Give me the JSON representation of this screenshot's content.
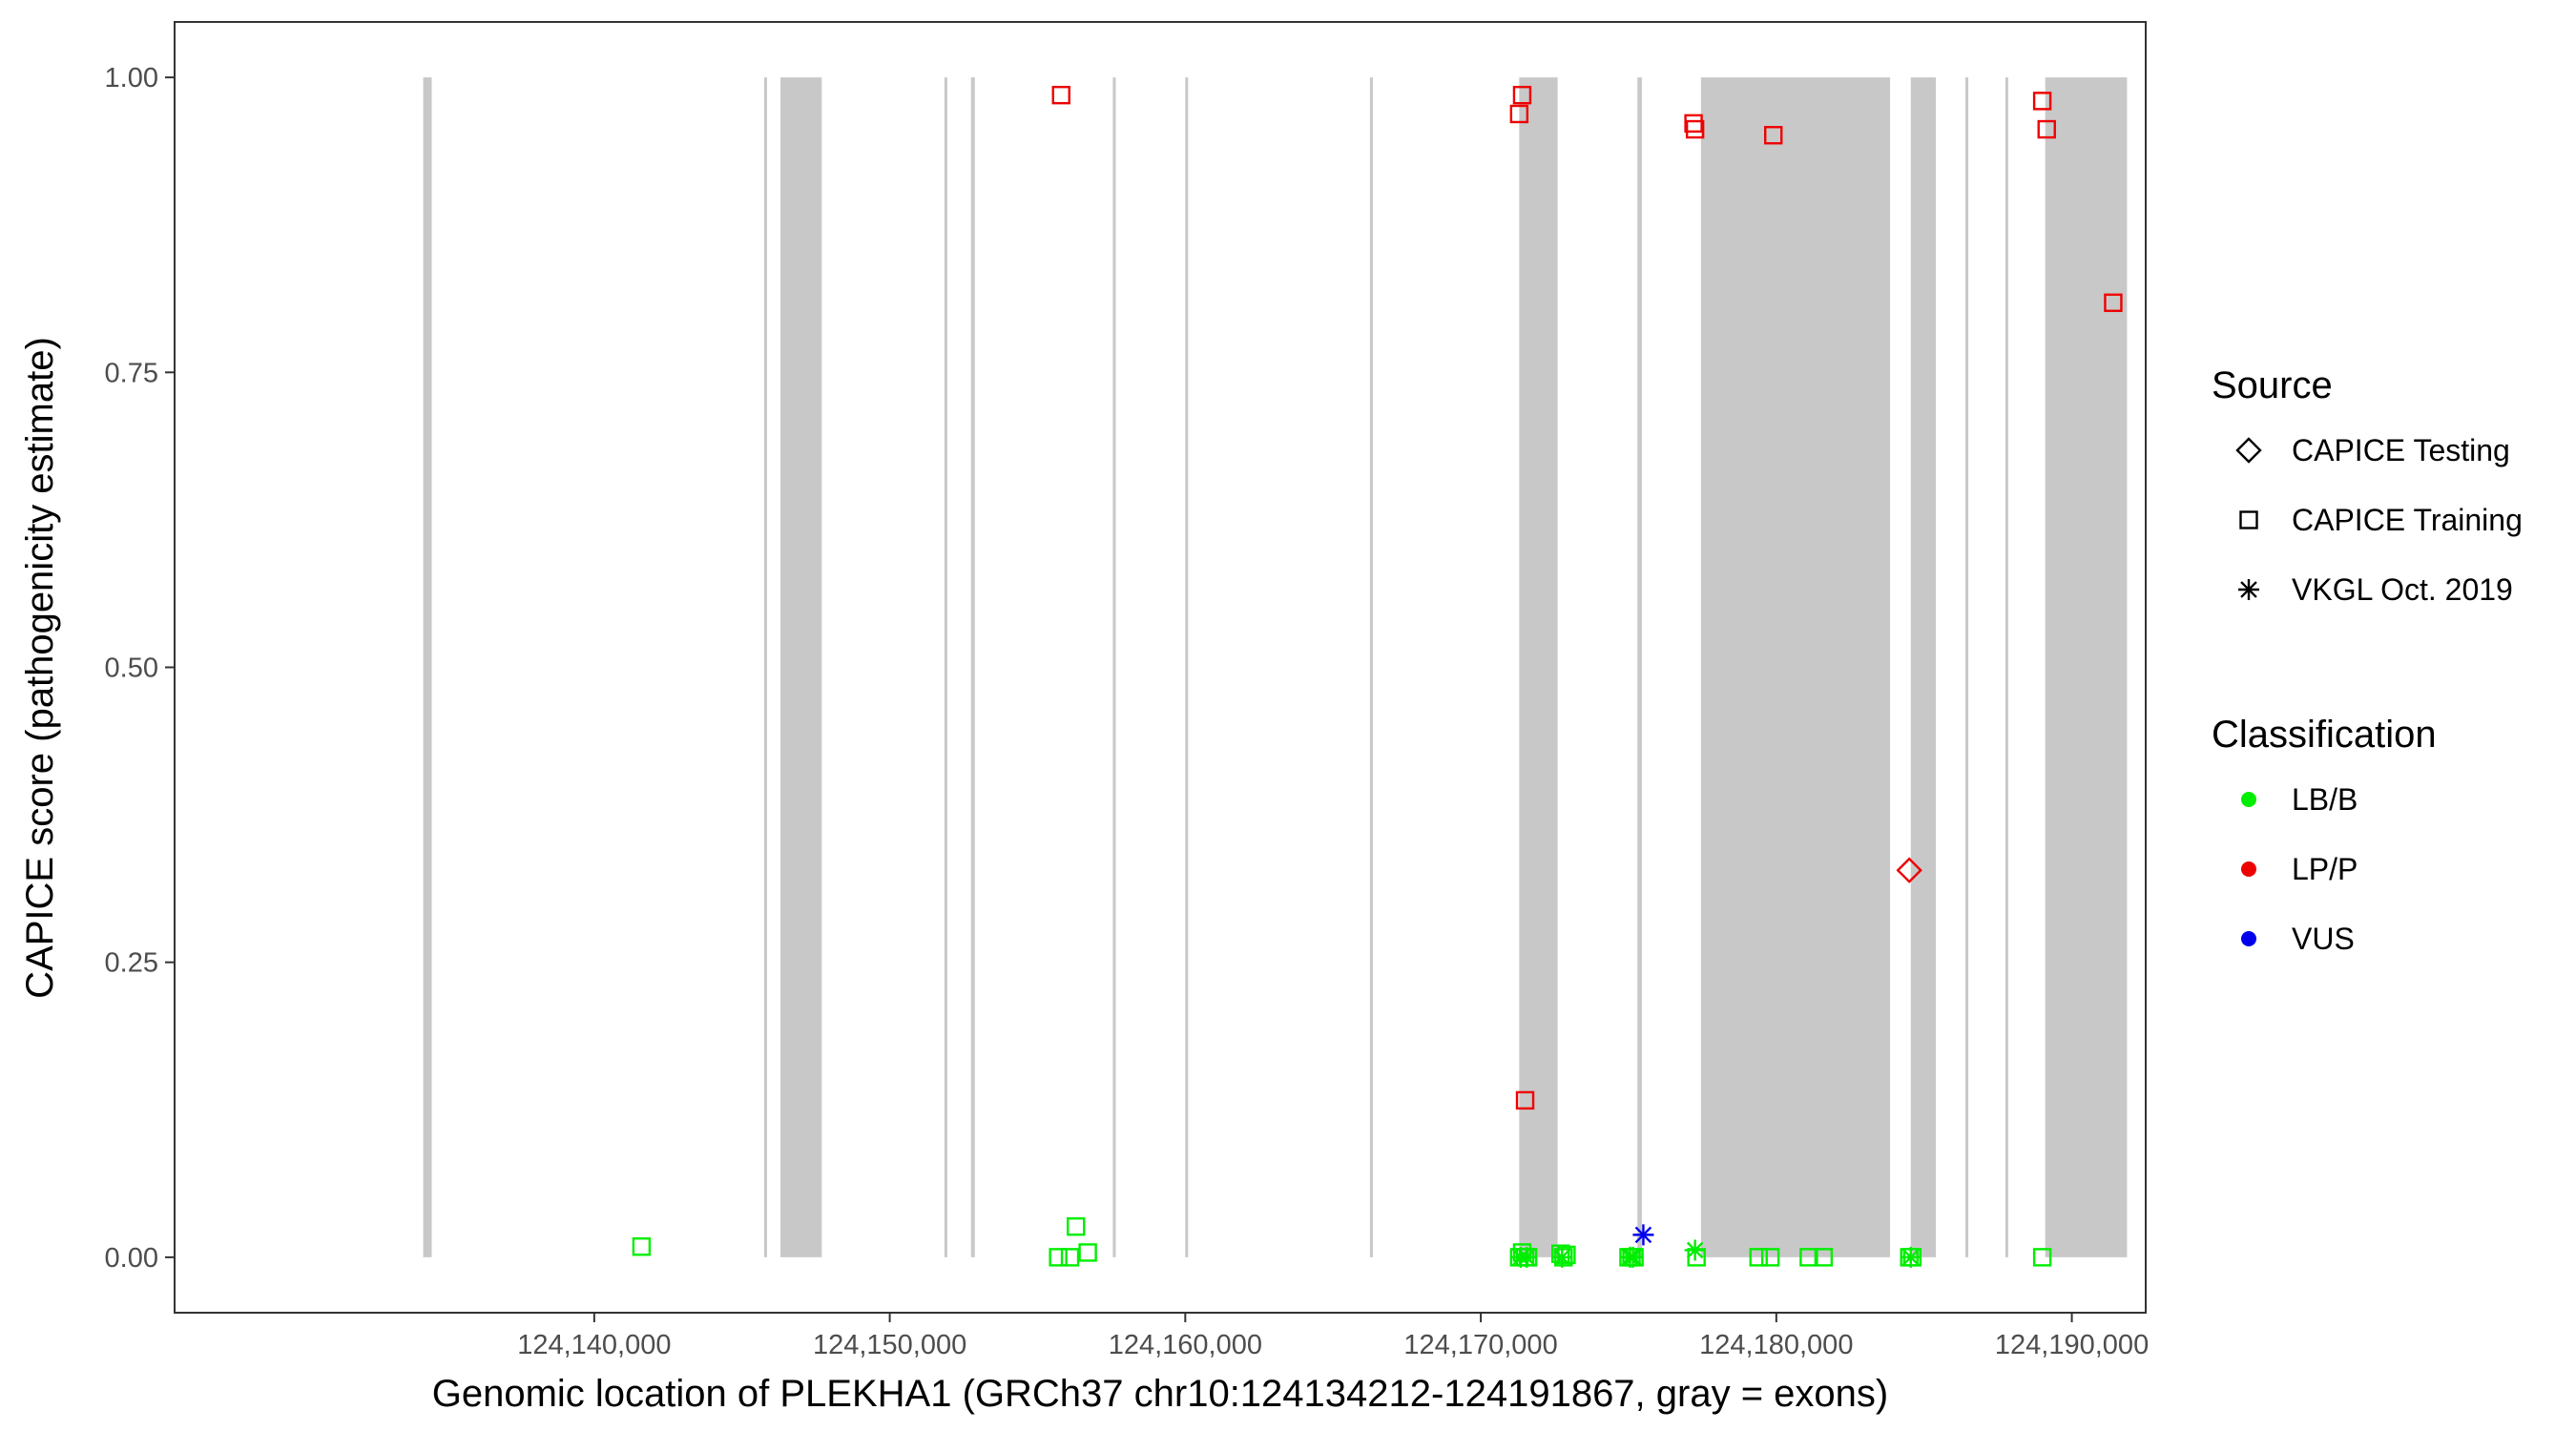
{
  "chart_data": {
    "type": "scatter",
    "title": "",
    "xlabel": "Genomic location of PLEKHA1 (GRCh37 chr10:124134212-124191867, gray = exons)",
    "ylabel": "CAPICE score (pathogenicity estimate)",
    "xlim": [
      124125800,
      124192500
    ],
    "ylim": [
      -0.047,
      1.047
    ],
    "x_ticks": [
      124140000,
      124150000,
      124160000,
      124170000,
      124180000,
      124190000
    ],
    "x_tick_labels": [
      "124,140,000",
      "124,150,000",
      "124,160,000",
      "124,170,000",
      "124,180,000",
      "124,190,000"
    ],
    "y_ticks": [
      0,
      0.25,
      0.5,
      0.75,
      1.0
    ],
    "y_tick_labels": [
      "0.00",
      "0.25",
      "0.50",
      "0.75",
      "1.00"
    ],
    "grid": false,
    "exons": [
      {
        "start": 124134212,
        "end": 124134500
      },
      {
        "start": 124145750,
        "end": 124145830
      },
      {
        "start": 124146300,
        "end": 124147700
      },
      {
        "start": 124151850,
        "end": 124151930
      },
      {
        "start": 124152750,
        "end": 124152880
      },
      {
        "start": 124157550,
        "end": 124157620
      },
      {
        "start": 124160000,
        "end": 124160060
      },
      {
        "start": 124166250,
        "end": 124166310
      },
      {
        "start": 124171300,
        "end": 124172600
      },
      {
        "start": 124175300,
        "end": 124175450
      },
      {
        "start": 124177450,
        "end": 124183850
      },
      {
        "start": 124184550,
        "end": 124185400
      },
      {
        "start": 124186400,
        "end": 124186480
      },
      {
        "start": 124187750,
        "end": 124187830
      },
      {
        "start": 124189100,
        "end": 124191867
      }
    ],
    "exon_color": "#c8c8c8",
    "legend": {
      "position": "right",
      "source_title": "Source",
      "source_items": [
        {
          "label": "CAPICE Testing",
          "shape": "diamond"
        },
        {
          "label": "CAPICE Training",
          "shape": "square"
        },
        {
          "label": "VKGL Oct. 2019",
          "shape": "asterisk"
        }
      ],
      "class_title": "Classification",
      "class_items": [
        {
          "label": "LB/B",
          "color": "#00ee00"
        },
        {
          "label": "LP/P",
          "color": "#ee0000"
        },
        {
          "label": "VUS",
          "color": "#0000ee"
        }
      ]
    },
    "series": [
      {
        "source": "CAPICE Training",
        "classification": "LP/P",
        "x": [
          124155800,
          124171300,
          124171400,
          124171500,
          124177200,
          124177250,
          124179900,
          124189000,
          124189150,
          124191400
        ],
        "y": [
          0.985,
          0.969,
          0.985,
          0.133,
          0.961,
          0.956,
          0.951,
          0.98,
          0.956,
          0.809
        ]
      },
      {
        "source": "CAPICE Testing",
        "classification": "LP/P",
        "x": [
          124184500
        ],
        "y": [
          0.328
        ]
      },
      {
        "source": "CAPICE Training",
        "classification": "LB/B",
        "x": [
          124141600,
          124155700,
          124156100,
          124156300,
          124156700,
          124171300,
          124171400,
          124171500,
          124171600,
          124172700,
          124172800,
          124172900,
          124175000,
          124175100,
          124175200,
          124177300,
          124179400,
          124179800,
          124181100,
          124181600,
          124184500,
          124184600,
          124189000
        ],
        "y": [
          0.009,
          0.0,
          0.0,
          0.026,
          0.004,
          0.0,
          0.004,
          0.0,
          0.0,
          0.003,
          0.0,
          0.002,
          0.0,
          0.0,
          0.0,
          0.0,
          0.0,
          0.0,
          0.0,
          0.0,
          0.0,
          0.0,
          0.0
        ]
      },
      {
        "source": "VKGL Oct. 2019",
        "classification": "LB/B",
        "x": [
          124171350,
          124171550,
          124172750,
          124175050,
          124175150,
          124177250,
          124184550
        ],
        "y": [
          0.0,
          0.0,
          0.0,
          0.0,
          0.0,
          0.006,
          0.0
        ]
      },
      {
        "source": "VKGL Oct. 2019",
        "classification": "VUS",
        "x": [
          124175500
        ],
        "y": [
          0.019
        ]
      }
    ]
  }
}
